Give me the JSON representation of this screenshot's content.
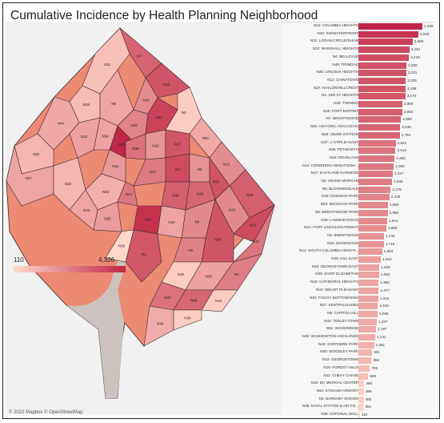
{
  "title": "Cumulative Incidence by Health Planning Neighborhood",
  "legend": {
    "min_label": "110",
    "max_label": "4,326"
  },
  "credit": "© 2022 Mapbox © OpenStreetMap",
  "colors": {
    "low": "#ffd8c8",
    "high": "#c02645",
    "border": "#3a2a2a",
    "water": "#c9c9c9",
    "outside": "#f1f1f1"
  },
  "map_labels": [
    "N11",
    "N7",
    "N12",
    "N19",
    "N44",
    "N9",
    "N28",
    "N29",
    "N31",
    "N3",
    "N13",
    "N34",
    "N36",
    "N23",
    "N51",
    "N50",
    "N15",
    "N37",
    "N41",
    "N21",
    "N27",
    "N22",
    "N20",
    "N4",
    "N17",
    "N6",
    "N14",
    "N40",
    "N45",
    "N46",
    "N26",
    "N43",
    "N33",
    "N24",
    "N25",
    "N32",
    "N8",
    "N10",
    "N30",
    "N1",
    "N35",
    "N5",
    "N16",
    "N18",
    "N39",
    "N2",
    "N47",
    "N48",
    "N42",
    "N49",
    "N38"
  ],
  "chart_data": {
    "type": "bar",
    "orientation": "horizontal",
    "categories": [
      "N13: COLUMBIA HEIGHTS",
      "N43: SW/WATERFRONT",
      "N31: LOGAN CIRCLE/SHAW",
      "N32: MARSHALL HEIGHTS",
      "N4: BELLEVUE",
      "N45: TRINIDAD",
      "N30: LINCOLN HEIGHTS",
      "N12: CHINATOWN",
      "N37: NAYLOR/HILLCREST",
      "N1: 16th ST HEIGHTS",
      "N46: TWINING",
      "N20: FORT DUPONT",
      "N7: BRIGHTWOOD",
      "N26: HISTORIC ANACOSTIA",
      "N48: UNION STATION",
      "N47: U ST/PLEASANT",
      "N36: PETWORTH",
      "N16: DOUGLASS",
      "N14: CONGRESS HEIGHTS/SH...",
      "N17: EASTLAND GARDENS",
      "N2: ADAMS MORGAN",
      "N5: BLOOMINGDALE",
      "N28: KINGMAN PARK",
      "N33: MICHIGAN PARK",
      "N8: BRIGHTWOOD PARK",
      "N29: LAMOND RIGGS",
      "N21: FORT LINCOLN/GATEWAY",
      "N6: BRENTWOOD",
      "N15: EDGEWOOD",
      "N41: SOUTH COLUMBIA HEIGHT...",
      "N25: HILL EAST",
      "N23: GEORGETOWN EAST",
      "N39: SAINT ELIZABETHS",
      "N10: CATHEDRAL HEIGHTS",
      "N34: MOUNT PLEASANT",
      "N24: FOGGY BOTTOM/GWU",
      "N27: KENTPALISADES",
      "N9: CAPITOL HILL",
      "N44: TENLEYTOWN",
      "N51: WOODRIDGE",
      "N49: WASHINGTON HIGHLANDS",
      "N40: SHEPHERD PARK",
      "N50: WOODLEY PARK",
      "N22: GEORGETOWN",
      "N19: FOREST HILLS",
      "N11: CHEVY CHASE",
      "N18: DC MEDICAL CENTER",
      "N42: STADIUM ARMORY",
      "N3: BARNABY WOODS",
      "N38: NAVAL STATION & AIR FO...",
      "N35: NATIONAL MALL"
    ],
    "values": [
      4326,
      4045,
      3659,
      3442,
      3418,
      3250,
      3231,
      3205,
      3189,
      3174,
      2969,
      2964,
      2892,
      2830,
      2792,
      2524,
      2513,
      2450,
      2390,
      2327,
      2269,
      2176,
      2105,
      1990,
      1980,
      1941,
      1889,
      1734,
      1716,
      1604,
      1522,
      1409,
      1394,
      1360,
      1377,
      1342,
      1315,
      1296,
      1237,
      1197,
      1141,
      1061,
      931,
      892,
      782,
      669,
      398,
      369,
      360,
      351,
      110
    ],
    "value_labels": [
      "4,326",
      "4,045",
      "3,659",
      "3,442",
      "3,418",
      "3,250",
      "3,231",
      "3,205",
      "3,189",
      "3,174",
      "2,969",
      "2,964",
      "2,892",
      "2,830",
      "2,792",
      "2,524",
      "2,513",
      "2,450",
      "2,390",
      "2,327",
      "2,269",
      "2,176",
      "2,105",
      "1,990",
      "1,980",
      "1,941",
      "1,889",
      "1,734",
      "1,716",
      "1,604",
      "1,522",
      "1,409",
      "1,394",
      "1,360",
      "1,377",
      "1,342",
      "1,315",
      "1,296",
      "1,237",
      "1,197",
      "1,141",
      "1,061",
      "931",
      "892",
      "782",
      "669",
      "398",
      "369",
      "360",
      "351",
      "110"
    ],
    "xlim": [
      0,
      4326
    ],
    "color_range": [
      "#ffd8c8",
      "#c02645"
    ],
    "grid": false
  }
}
